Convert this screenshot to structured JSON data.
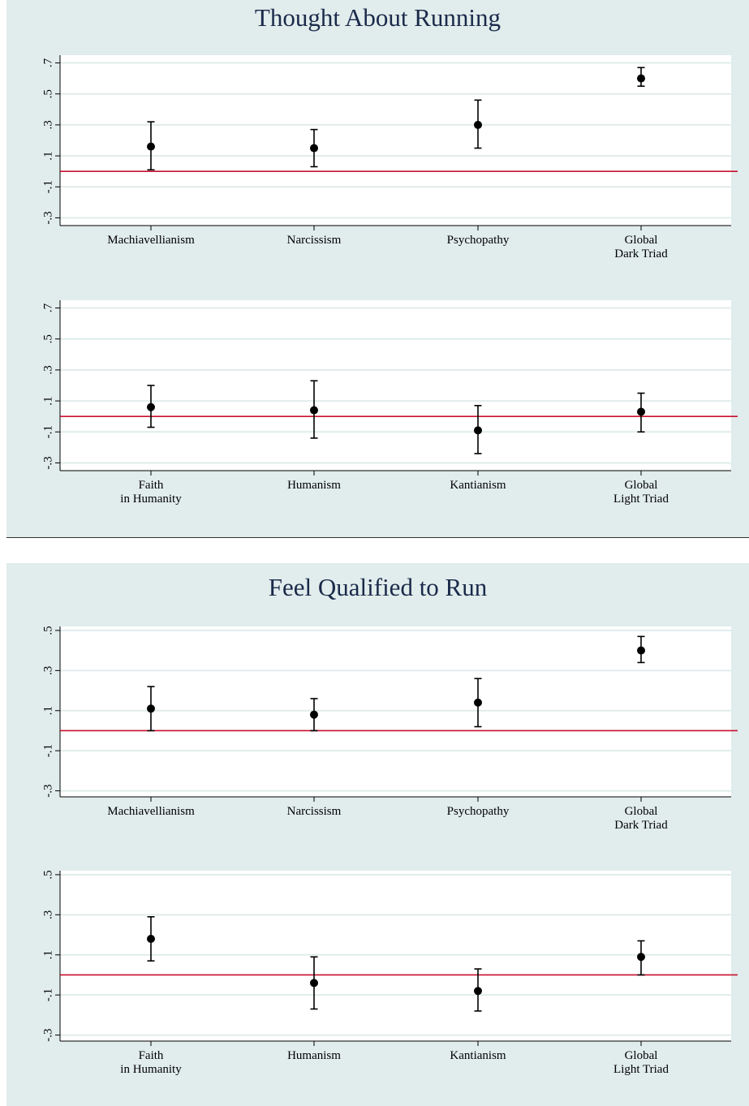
{
  "figures": [
    {
      "title": "Thought About Running"
    },
    {
      "title": "Feel Qualified to Run"
    }
  ],
  "colors": {
    "panel_background": "#e1ecec",
    "plot_background": "#ffffff",
    "gridline": "#e1ecec",
    "reference_line": "#c8102e",
    "marker": "#000000",
    "title": "#1a2a4a"
  },
  "chart_data": [
    {
      "type": "scatter",
      "figure": "Thought About Running",
      "panel": "dark-triad",
      "categories": [
        [
          "Machiavellianism"
        ],
        [
          "Narcissism"
        ],
        [
          "Psychopathy"
        ],
        [
          "Global",
          "Dark Triad"
        ]
      ],
      "estimates": [
        0.16,
        0.15,
        0.3,
        0.6
      ],
      "ci_low": [
        0.01,
        0.03,
        0.15,
        0.55
      ],
      "ci_high": [
        0.32,
        0.27,
        0.46,
        0.67
      ],
      "yticks": [
        -0.3,
        -0.1,
        0.1,
        0.3,
        0.5,
        0.7
      ],
      "ytick_labels": [
        "-.3",
        "-.1",
        ".1",
        ".3",
        ".5",
        ".7"
      ],
      "ylim": [
        -0.35,
        0.75
      ],
      "reference_line": 0,
      "grid": true
    },
    {
      "type": "scatter",
      "figure": "Thought About Running",
      "panel": "light-triad",
      "categories": [
        [
          "Faith",
          "in Humanity"
        ],
        [
          "Humanism"
        ],
        [
          "Kantianism"
        ],
        [
          "Global",
          "Light Triad"
        ]
      ],
      "estimates": [
        0.06,
        0.04,
        -0.09,
        0.03
      ],
      "ci_low": [
        -0.07,
        -0.14,
        -0.24,
        -0.1
      ],
      "ci_high": [
        0.2,
        0.23,
        0.07,
        0.15
      ],
      "yticks": [
        -0.3,
        -0.1,
        0.1,
        0.3,
        0.5,
        0.7
      ],
      "ytick_labels": [
        "-.3",
        "-.1",
        ".1",
        ".3",
        ".5",
        ".7"
      ],
      "ylim": [
        -0.35,
        0.75
      ],
      "reference_line": 0,
      "grid": true
    },
    {
      "type": "scatter",
      "figure": "Feel Qualified to Run",
      "panel": "dark-triad",
      "categories": [
        [
          "Machiavellianism"
        ],
        [
          "Narcissism"
        ],
        [
          "Psychopathy"
        ],
        [
          "Global",
          "Dark Triad"
        ]
      ],
      "estimates": [
        0.11,
        0.08,
        0.14,
        0.4
      ],
      "ci_low": [
        0.0,
        0.0,
        0.02,
        0.34
      ],
      "ci_high": [
        0.22,
        0.16,
        0.26,
        0.47
      ],
      "yticks": [
        -0.3,
        -0.1,
        0.1,
        0.3,
        0.5
      ],
      "ytick_labels": [
        "-.3",
        "-.1",
        ".1",
        ".3",
        ".5"
      ],
      "ylim": [
        -0.33,
        0.52
      ],
      "reference_line": 0,
      "grid": true
    },
    {
      "type": "scatter",
      "figure": "Feel Qualified to Run",
      "panel": "light-triad",
      "categories": [
        [
          "Faith",
          "in Humanity"
        ],
        [
          "Humanism"
        ],
        [
          "Kantianism"
        ],
        [
          "Global",
          "Light Triad"
        ]
      ],
      "estimates": [
        0.18,
        -0.04,
        -0.08,
        0.09
      ],
      "ci_low": [
        0.07,
        -0.17,
        -0.18,
        0.0
      ],
      "ci_high": [
        0.29,
        0.09,
        0.03,
        0.17
      ],
      "yticks": [
        -0.3,
        -0.1,
        0.1,
        0.3,
        0.5
      ],
      "ytick_labels": [
        "-.3",
        "-.1",
        ".1",
        ".3",
        ".5"
      ],
      "ylim": [
        -0.33,
        0.52
      ],
      "reference_line": 0,
      "grid": true
    }
  ]
}
